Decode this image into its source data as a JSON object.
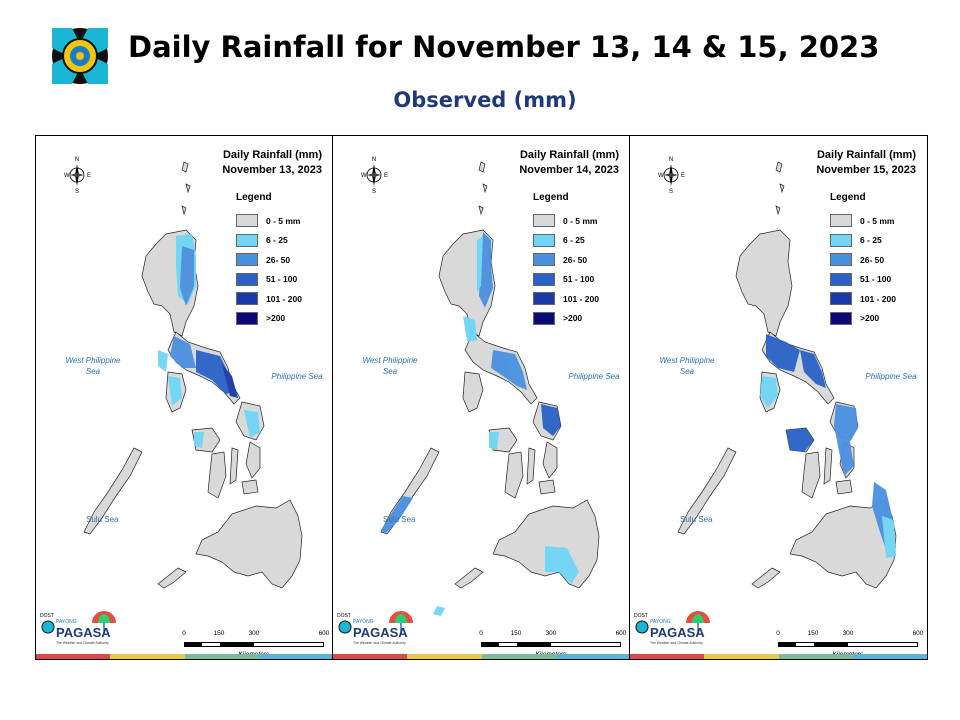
{
  "header": {
    "title": "Daily Rainfall for November 13, 14 & 15, 2023",
    "subtitle": "Observed (mm)"
  },
  "legend": {
    "title": "Legend",
    "items": [
      {
        "label": "0 - 5 mm",
        "color": "#d9d9d9"
      },
      {
        "label": "6 - 25",
        "color": "#6fd6f5"
      },
      {
        "label": "26- 50",
        "color": "#4a90e0"
      },
      {
        "label": "51 - 100",
        "color": "#2a62c8"
      },
      {
        "label": "101 - 200",
        "color": "#1a3aa8"
      },
      {
        "label": ">200",
        "color": "#0a0a78"
      }
    ]
  },
  "seas": {
    "west": "West Philippine Sea",
    "philippine": "Philippine Sea",
    "sulu": "Sulu Sea"
  },
  "scale": {
    "ticks": [
      "0",
      "150",
      "300",
      "600"
    ],
    "unit": "Kilometers"
  },
  "panels": [
    {
      "title_line1": "Daily Rainfall (mm)",
      "title_line2": "November 13, 2023",
      "rain_zones": [
        {
          "region": "northeast-luzon",
          "class": "6 - 25"
        },
        {
          "region": "cagayan-valley",
          "class": "26- 50"
        },
        {
          "region": "southern-luzon",
          "class": "26- 50"
        },
        {
          "region": "bicol",
          "class": "51 - 100"
        },
        {
          "region": "catanduanes",
          "class": "101 - 200"
        },
        {
          "region": "mindoro",
          "class": "6 - 25"
        },
        {
          "region": "panay-west",
          "class": "6 - 25"
        },
        {
          "region": "eastern-visayas",
          "class": "6 - 25"
        }
      ]
    },
    {
      "title_line1": "Daily Rainfall (mm)",
      "title_line2": "November 14, 2023",
      "rain_zones": [
        {
          "region": "northeast-luzon",
          "class": "26- 50"
        },
        {
          "region": "central-luzon",
          "class": "6 - 25"
        },
        {
          "region": "bicol",
          "class": "26- 50"
        },
        {
          "region": "samar",
          "class": "51 - 100"
        },
        {
          "region": "palawan-south",
          "class": "26- 50"
        },
        {
          "region": "panay-west",
          "class": "6 - 25"
        },
        {
          "region": "central-mindanao",
          "class": "6 - 25"
        }
      ]
    },
    {
      "title_line1": "Daily Rainfall (mm)",
      "title_line2": "November 15, 2023",
      "rain_zones": [
        {
          "region": "southern-luzon",
          "class": "51 - 100"
        },
        {
          "region": "bicol",
          "class": "51 - 100"
        },
        {
          "region": "panay",
          "class": "51 - 100"
        },
        {
          "region": "eastern-visayas",
          "class": "26- 50"
        },
        {
          "region": "eastern-mindanao",
          "class": "26- 50"
        },
        {
          "region": "mindoro",
          "class": "6 - 25"
        }
      ]
    }
  ],
  "footer": {
    "brand": "PAGASA",
    "dost": "DOST",
    "payong": "PAYONG",
    "tagline": "The Weather and Climate Authority",
    "strip_colors": [
      "#d94b4b",
      "#e6c84a",
      "#7fb89b",
      "#5ab3d9"
    ]
  },
  "colors": {
    "title": "#000000",
    "subtitle": "#1f3a79",
    "land": "#d9d9d9",
    "border": "#222222"
  }
}
